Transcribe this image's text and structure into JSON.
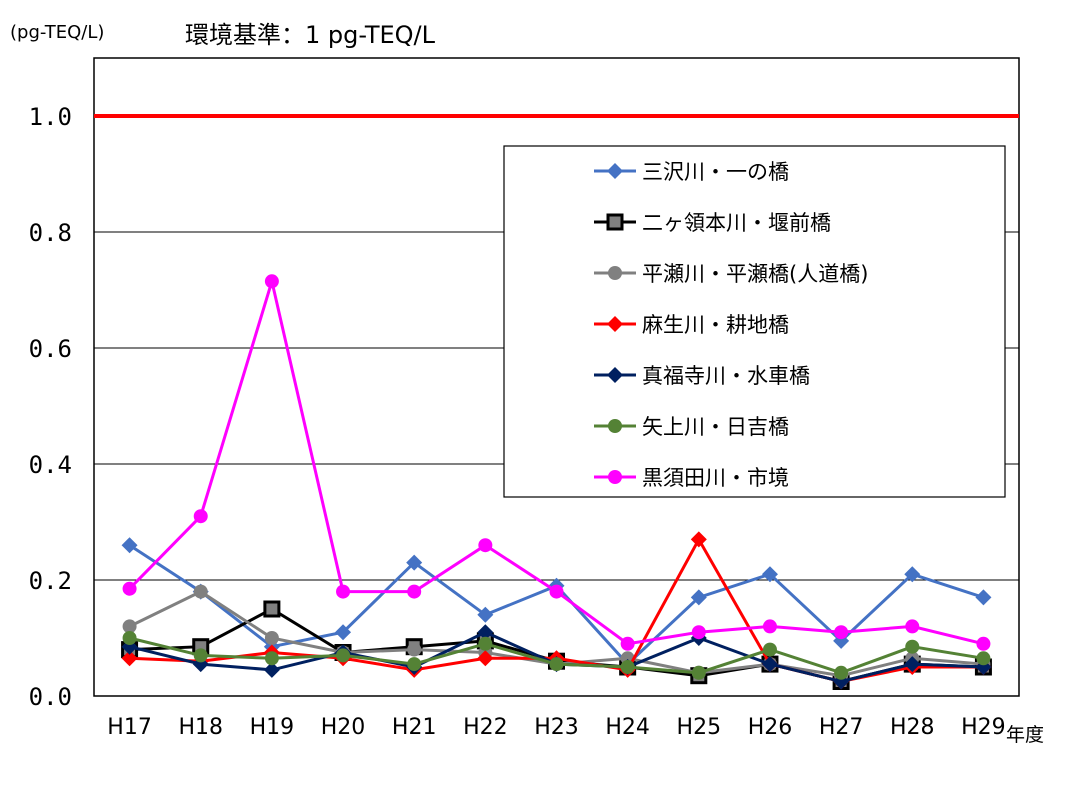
{
  "unit_label": "(pg-TEQ/L)",
  "standard_label": "環境基準：1 pg-TEQ/L",
  "x_unit": "年度",
  "chart_data": {
    "type": "line",
    "categories": [
      "H17",
      "H18",
      "H19",
      "H20",
      "H21",
      "H22",
      "H23",
      "H24",
      "H25",
      "H26",
      "H27",
      "H28",
      "H29"
    ],
    "y_ticks": [
      "0.0",
      "0.2",
      "0.4",
      "0.6",
      "0.8",
      "1.0"
    ],
    "ylim": [
      0,
      1.1
    ],
    "grid": true,
    "legend_position": "top-right",
    "reference_line": {
      "value": 1.0,
      "color": "#FF0000"
    },
    "series": [
      {
        "name": "三沢川・一の橋",
        "color": "#4472C4",
        "marker": "diamond",
        "values": [
          0.26,
          0.18,
          0.085,
          0.11,
          0.23,
          0.14,
          0.19,
          0.055,
          0.17,
          0.21,
          0.095,
          0.21,
          0.17
        ]
      },
      {
        "name": "二ヶ領本川・堰前橋",
        "color": "#000000",
        "marker": "square",
        "values": [
          0.08,
          0.085,
          0.15,
          0.075,
          0.085,
          0.095,
          0.06,
          0.05,
          0.035,
          0.055,
          0.025,
          0.055,
          0.05
        ]
      },
      {
        "name": "平瀬川・平瀬橋(人道橋)",
        "color": "#808080",
        "marker": "circle",
        "values": [
          0.12,
          0.18,
          0.1,
          0.075,
          0.08,
          0.075,
          0.055,
          0.065,
          0.04,
          0.055,
          0.035,
          0.065,
          0.055
        ]
      },
      {
        "name": "麻生川・耕地橋",
        "color": "#FF0000",
        "marker": "diamond",
        "values": [
          0.065,
          0.06,
          0.075,
          0.065,
          0.045,
          0.065,
          0.065,
          0.045,
          0.27,
          0.055,
          0.025,
          0.05,
          0.05
        ]
      },
      {
        "name": "真福寺川・水車橋",
        "color": "#002060",
        "marker": "diamond",
        "values": [
          0.085,
          0.055,
          0.045,
          0.075,
          0.05,
          0.11,
          0.055,
          0.05,
          0.1,
          0.055,
          0.025,
          0.055,
          0.05
        ]
      },
      {
        "name": "矢上川・日吉橋",
        "color": "#548235",
        "marker": "circle",
        "values": [
          0.1,
          0.07,
          0.065,
          0.07,
          0.055,
          0.09,
          0.055,
          0.05,
          0.04,
          0.08,
          0.04,
          0.085,
          0.065
        ]
      },
      {
        "name": "黒須田川・市境",
        "color": "#FF00FF",
        "marker": "circle",
        "values": [
          0.185,
          0.31,
          0.715,
          0.18,
          0.18,
          0.26,
          0.18,
          0.09,
          0.11,
          0.12,
          0.11,
          0.12,
          0.09
        ]
      }
    ]
  }
}
